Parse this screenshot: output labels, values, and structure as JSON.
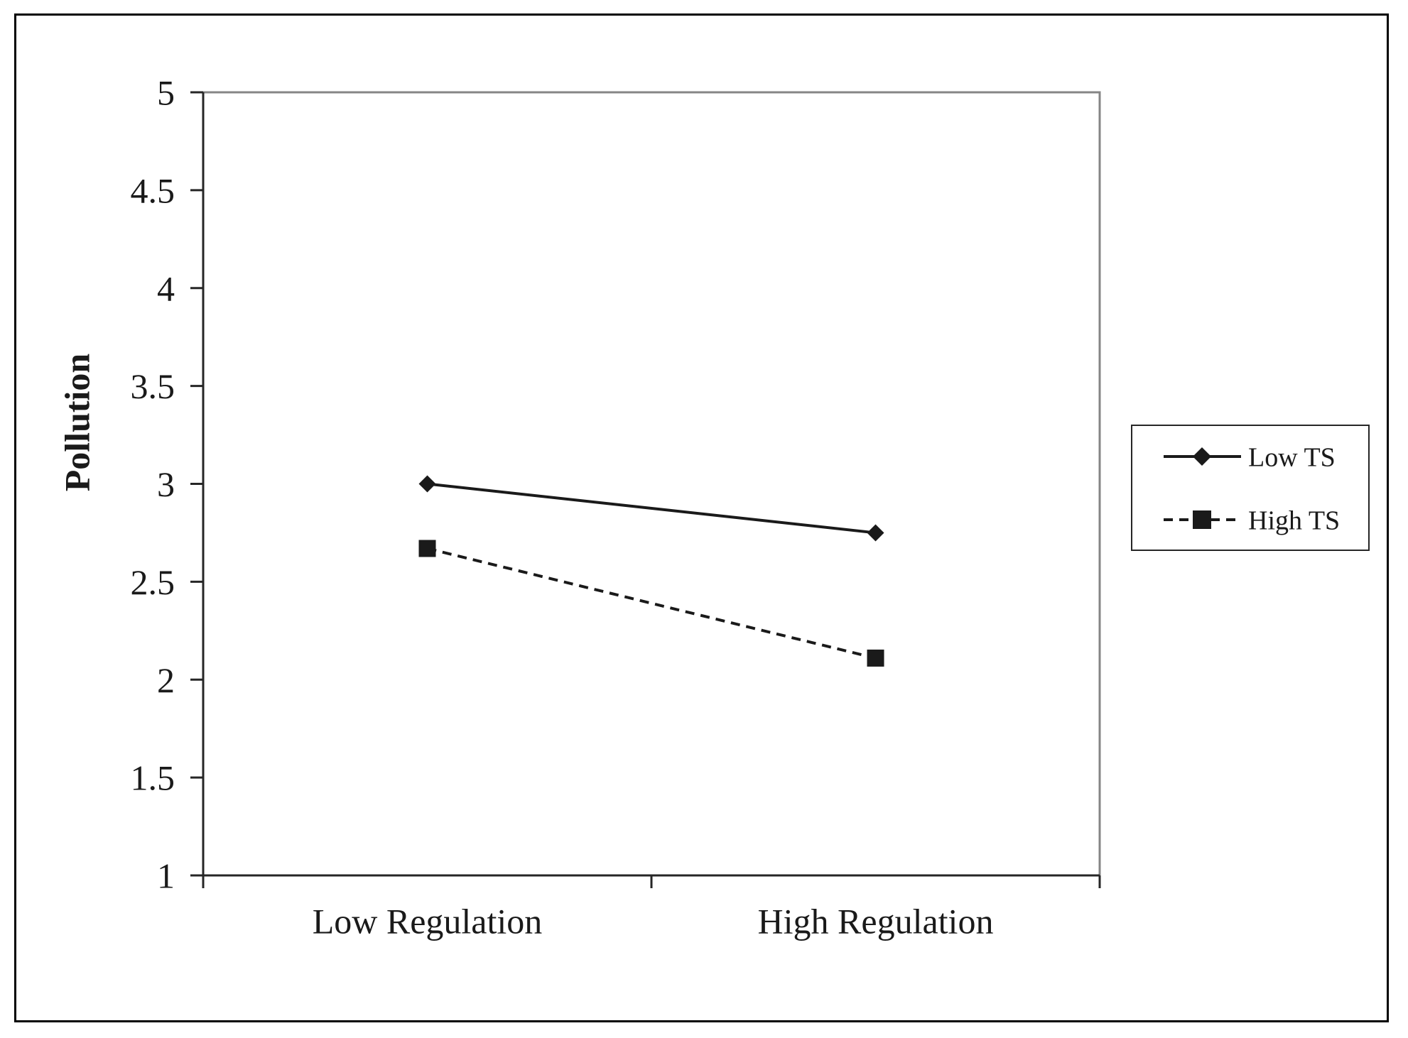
{
  "chart_data": {
    "type": "line",
    "title": "",
    "xlabel": "",
    "ylabel": "Pollution",
    "categories": [
      "Low Regulation",
      "High Regulation"
    ],
    "series": [
      {
        "name": "Low TS",
        "values": [
          3.0,
          2.75
        ],
        "line": "solid",
        "marker": "diamond"
      },
      {
        "name": "High TS",
        "values": [
          2.67,
          2.11
        ],
        "line": "dashed",
        "marker": "square"
      }
    ],
    "ylim": [
      1,
      5
    ],
    "yticks": [
      5,
      4.5,
      4,
      3.5,
      3,
      2.5,
      2,
      1.5,
      1
    ],
    "grid": false,
    "legend_position": "right-outside",
    "colors": {
      "line": "#1a1a1a",
      "axis": "#262626",
      "plot_frame": "#858585",
      "text": "#1a1a1a",
      "background": "#ffffff",
      "outer_border": "#000000"
    }
  }
}
